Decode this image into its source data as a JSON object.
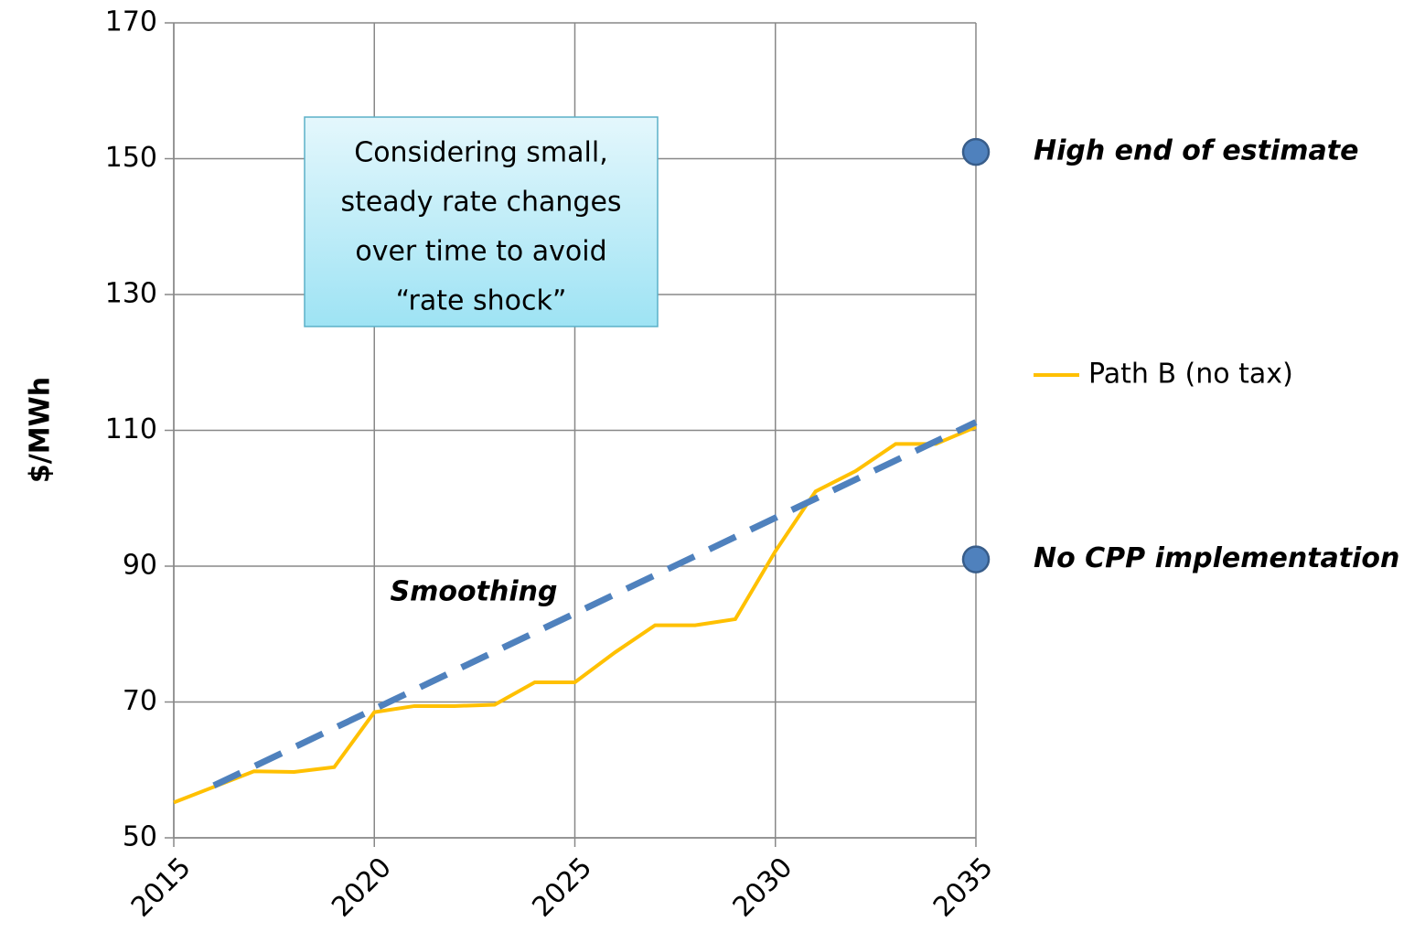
{
  "chart_data": {
    "type": "line",
    "ylabel": "$/MWh",
    "xlim": [
      2015,
      2035
    ],
    "xticks": [
      2015,
      2020,
      2025,
      2030,
      2035
    ],
    "ylim": [
      50,
      170
    ],
    "yticks": [
      50,
      70,
      90,
      110,
      130,
      150,
      170
    ],
    "grid": true,
    "legend": "right",
    "series": [
      {
        "name": "Path B (no tax)",
        "color": "#ffc000",
        "x": [
          2015,
          2016,
          2017,
          2018,
          2019,
          2020,
          2021,
          2022,
          2023,
          2024,
          2025,
          2026,
          2027,
          2028,
          2029,
          2030,
          2031,
          2032,
          2033,
          2034,
          2035
        ],
        "values": [
          55.2,
          57.5,
          59.8,
          59.7,
          60.4,
          68.5,
          69.4,
          69.4,
          69.6,
          72.9,
          72.9,
          77.3,
          81.3,
          81.3,
          82.2,
          92.2,
          101,
          104,
          108,
          108,
          110.5
        ]
      }
    ],
    "trend": {
      "label": "Smoothing",
      "color": "#4f81bd",
      "x": [
        2016,
        2035
      ],
      "values": [
        57.7,
        111.2
      ]
    },
    "points": [
      {
        "label": "High end of estimate",
        "x": 2035,
        "value": 151,
        "color": "#4f81bd"
      },
      {
        "label": "No CPP implementation",
        "x": 2035,
        "value": 91,
        "color": "#4f81bd"
      }
    ],
    "callout": {
      "lines": [
        "Considering small,",
        "steady rate changes",
        "over time to avoid",
        "“rate shock”"
      ]
    }
  }
}
